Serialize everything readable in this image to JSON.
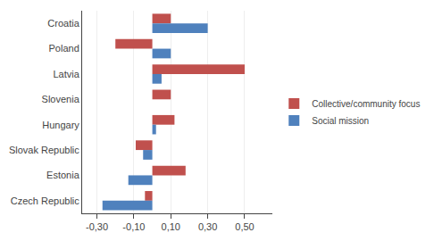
{
  "chart_data": {
    "type": "bar",
    "orientation": "horizontal",
    "categories": [
      "Croatia",
      "Poland",
      "Latvia",
      "Slovenia",
      "Hungary",
      "Slovak Republic",
      "Estonia",
      "Czech Republic"
    ],
    "series": [
      {
        "name": "Collective/community focus",
        "color": "#C0504D",
        "values": [
          0.1,
          -0.2,
          0.5,
          0.1,
          0.12,
          -0.09,
          0.18,
          -0.04
        ]
      },
      {
        "name": "Social mission",
        "color": "#4F81BD",
        "values": [
          0.3,
          0.1,
          0.05,
          0.0,
          0.02,
          -0.05,
          -0.13,
          -0.27
        ]
      }
    ],
    "xlim": [
      -0.38,
      0.65
    ],
    "xticks": [
      {
        "value": -0.3,
        "label": "-0,30"
      },
      {
        "value": -0.1,
        "label": "-0,10"
      },
      {
        "value": 0.1,
        "label": "0,10"
      },
      {
        "value": 0.3,
        "label": "0,30"
      },
      {
        "value": 0.5,
        "label": "0,50"
      }
    ],
    "grid": true,
    "legend": "right"
  }
}
